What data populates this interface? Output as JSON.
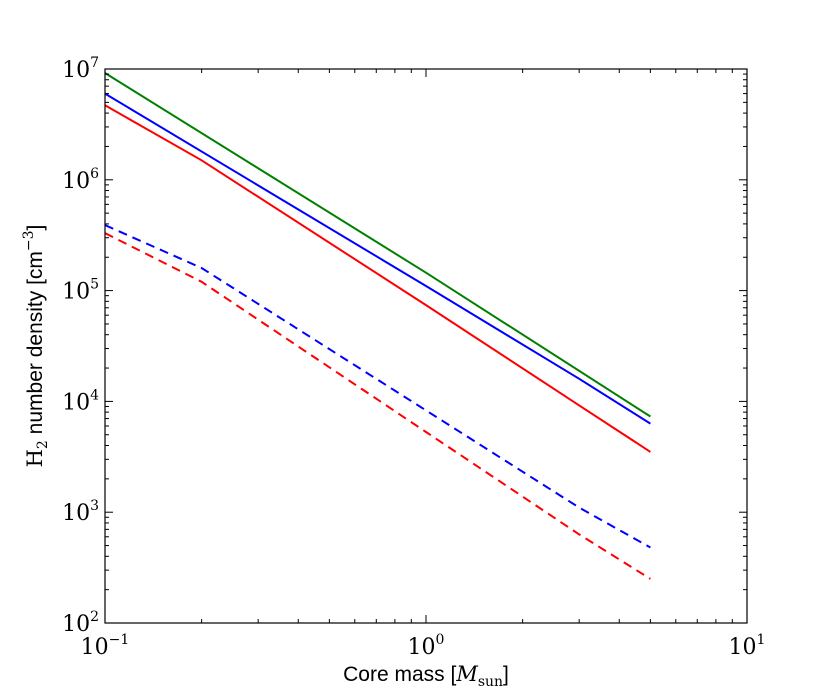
{
  "chart_data": {
    "type": "line",
    "title": "",
    "xlabel": {
      "prefix": "Core mass [",
      "symbol": "M",
      "subscript": "sun",
      "suffix": "]"
    },
    "ylabel": {
      "prefix": "H",
      "subscript": "2",
      "middle": " number density [cm",
      "superscript": "−3",
      "suffix": "]"
    },
    "xscale": "log",
    "yscale": "log",
    "xlim": [
      0.1,
      10
    ],
    "ylim": [
      100,
      10000000
    ],
    "grid": false,
    "xticks": [
      {
        "base": "10",
        "exp": "−1",
        "value": 0.1
      },
      {
        "base": "10",
        "exp": "0",
        "value": 1
      },
      {
        "base": "10",
        "exp": "1",
        "value": 10
      }
    ],
    "yticks": [
      {
        "base": "10",
        "exp": "2",
        "value": 100
      },
      {
        "base": "10",
        "exp": "3",
        "value": 1000
      },
      {
        "base": "10",
        "exp": "4",
        "value": 10000
      },
      {
        "base": "10",
        "exp": "5",
        "value": 100000
      },
      {
        "base": "10",
        "exp": "6",
        "value": 1000000
      },
      {
        "base": "10",
        "exp": "7",
        "value": 10000000
      }
    ],
    "series": [
      {
        "name": "green-solid",
        "color": "#008000",
        "style": "solid",
        "x": [
          0.1,
          1.0,
          5.0
        ],
        "y": [
          9200000,
          145000,
          7300
        ]
      },
      {
        "name": "blue-solid",
        "color": "#0000ff",
        "style": "solid",
        "x": [
          0.1,
          1.0,
          3.0,
          5.0
        ],
        "y": [
          6000000,
          110000,
          16000,
          6300
        ]
      },
      {
        "name": "red-solid",
        "color": "#ff0000",
        "style": "solid",
        "x": [
          0.1,
          0.2,
          1.0,
          3.0,
          5.0
        ],
        "y": [
          4700000,
          1500000,
          74000,
          9200,
          3500
        ]
      },
      {
        "name": "blue-dashed",
        "color": "#0000ff",
        "style": "dashed",
        "x": [
          0.1,
          0.2,
          1.0,
          3.0,
          5.0
        ],
        "y": [
          390000,
          160000,
          8300,
          1100,
          480
        ]
      },
      {
        "name": "red-dashed",
        "color": "#ff0000",
        "style": "dashed",
        "x": [
          0.1,
          0.2,
          1.0,
          3.0,
          5.0
        ],
        "y": [
          330000,
          120000,
          5300,
          630,
          250
        ]
      }
    ]
  }
}
